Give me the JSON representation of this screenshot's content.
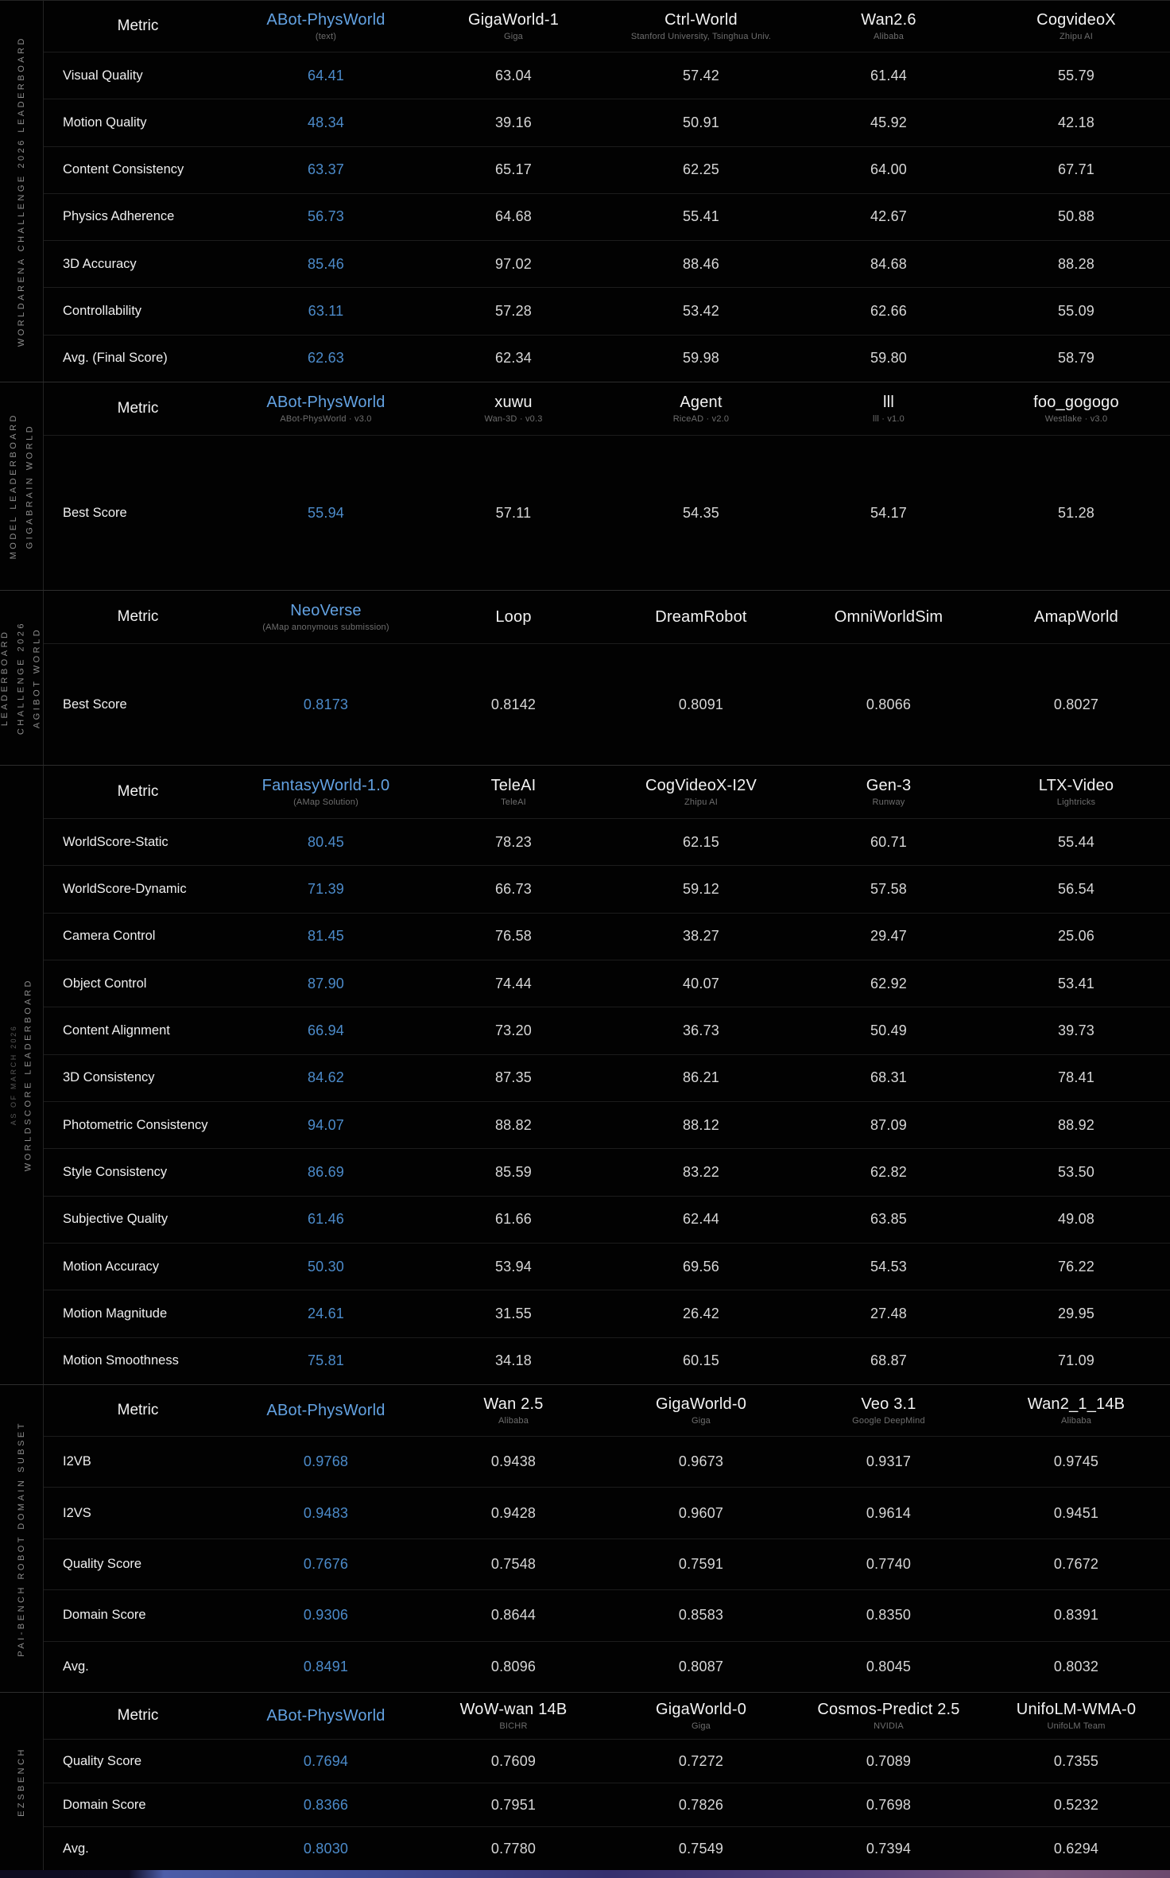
{
  "colors": {
    "accent_header": "#63a2e2",
    "accent_value": "#4c8bca"
  },
  "footer_strip": {
    "colors": [
      "#0e0c20",
      "#0f0d24",
      "#4c5da8",
      "#3d4a94",
      "#35306e",
      "#52407c",
      "#7a5880",
      "#6b4a6e"
    ]
  },
  "tables": [
    {
      "id": "worldarena-challenge-2026",
      "sidebar_lines": [
        {
          "text": "WORLDARENA CHALLENGE 2026 LEADERBOARD"
        }
      ],
      "metric_label": "Metric",
      "columns": [
        {
          "name": "ABot-PhysWorld",
          "sub": "(text)",
          "highlight": true
        },
        {
          "name": "GigaWorld-1",
          "sub": "Giga"
        },
        {
          "name": "Ctrl-World",
          "sub": "Stanford University, Tsinghua Univ."
        },
        {
          "name": "Wan2.6",
          "sub": "Alibaba"
        },
        {
          "name": "CogvideoX",
          "sub": "Zhipu AI"
        }
      ],
      "rows": [
        {
          "label": "Visual Quality",
          "values": [
            "64.41",
            "63.04",
            "57.42",
            "61.44",
            "55.79"
          ]
        },
        {
          "label": "Motion Quality",
          "values": [
            "48.34",
            "39.16",
            "50.91",
            "45.92",
            "42.18"
          ]
        },
        {
          "label": "Content Consistency",
          "values": [
            "63.37",
            "65.17",
            "62.25",
            "64.00",
            "67.71"
          ]
        },
        {
          "label": "Physics Adherence",
          "values": [
            "56.73",
            "64.68",
            "55.41",
            "42.67",
            "50.88"
          ]
        },
        {
          "label": "3D Accuracy",
          "values": [
            "85.46",
            "97.02",
            "88.46",
            "84.68",
            "88.28"
          ]
        },
        {
          "label": "Controllability",
          "values": [
            "63.11",
            "57.28",
            "53.42",
            "62.66",
            "55.09"
          ]
        },
        {
          "label": "Avg. (Final Score)",
          "values": [
            "62.63",
            "62.34",
            "59.98",
            "59.80",
            "58.79"
          ]
        }
      ]
    },
    {
      "id": "gigabrain-world",
      "sidebar_lines": [
        {
          "text": "MODEL LEADERBOARD"
        },
        {
          "text": "GIGABRAIN WORLD"
        }
      ],
      "metric_label": "Metric",
      "columns": [
        {
          "name": "ABot-PhysWorld",
          "sub": "ABot-PhysWorld · v3.0",
          "highlight": true
        },
        {
          "name": "xuwu",
          "sub": "Wan-3D · v0.3"
        },
        {
          "name": "Agent",
          "sub": "RiceAD · v2.0"
        },
        {
          "name": "lll",
          "sub": "lll · v1.0"
        },
        {
          "name": "foo_gogogo",
          "sub": "Westlake · v3.0"
        }
      ],
      "rows": [
        {
          "label": "Best Score",
          "values": [
            "55.94",
            "57.11",
            "54.35",
            "54.17",
            "51.28"
          ]
        }
      ]
    },
    {
      "id": "agibot-world",
      "sidebar_lines": [
        {
          "text": "LEADERBOARD"
        },
        {
          "text": "CHALLENGE 2026"
        },
        {
          "text": "AGIBOT WORLD"
        }
      ],
      "metric_label": "Metric",
      "columns": [
        {
          "name": "NeoVerse",
          "sub": "(AMap anonymous submission)",
          "highlight": true
        },
        {
          "name": "Loop"
        },
        {
          "name": "DreamRobot"
        },
        {
          "name": "OmniWorldSim"
        },
        {
          "name": "AmapWorld"
        }
      ],
      "rows": [
        {
          "label": "Best Score",
          "values": [
            "0.8173",
            "0.8142",
            "0.8091",
            "0.8066",
            "0.8027"
          ]
        }
      ]
    },
    {
      "id": "worldscore",
      "sidebar_lines": [
        {
          "text": "AS OF MARCH 2026",
          "small": true
        },
        {
          "text": "WORLDSCORE LEADERBOARD"
        }
      ],
      "metric_label": "Metric",
      "columns": [
        {
          "name": "FantasyWorld-1.0",
          "sub": "(AMap Solution)",
          "highlight": true
        },
        {
          "name": "TeleAI",
          "sub": "TeleAI"
        },
        {
          "name": "CogVideoX-I2V",
          "sub": "Zhipu AI"
        },
        {
          "name": "Gen-3",
          "sub": "Runway"
        },
        {
          "name": "LTX-Video",
          "sub": "Lightricks"
        }
      ],
      "rows": [
        {
          "label": "WorldScore-Static",
          "values": [
            "80.45",
            "78.23",
            "62.15",
            "60.71",
            "55.44"
          ]
        },
        {
          "label": "WorldScore-Dynamic",
          "values": [
            "71.39",
            "66.73",
            "59.12",
            "57.58",
            "56.54"
          ]
        },
        {
          "label": "Camera Control",
          "values": [
            "81.45",
            "76.58",
            "38.27",
            "29.47",
            "25.06"
          ]
        },
        {
          "label": "Object Control",
          "values": [
            "87.90",
            "74.44",
            "40.07",
            "62.92",
            "53.41"
          ]
        },
        {
          "label": "Content Alignment",
          "values": [
            "66.94",
            "73.20",
            "36.73",
            "50.49",
            "39.73"
          ]
        },
        {
          "label": "3D Consistency",
          "values": [
            "84.62",
            "87.35",
            "86.21",
            "68.31",
            "78.41"
          ]
        },
        {
          "label": "Photometric Consistency",
          "values": [
            "94.07",
            "88.82",
            "88.12",
            "87.09",
            "88.92"
          ]
        },
        {
          "label": "Style Consistency",
          "values": [
            "86.69",
            "85.59",
            "83.22",
            "62.82",
            "53.50"
          ]
        },
        {
          "label": "Subjective Quality",
          "values": [
            "61.46",
            "61.66",
            "62.44",
            "63.85",
            "49.08"
          ]
        },
        {
          "label": "Motion Accuracy",
          "values": [
            "50.30",
            "53.94",
            "69.56",
            "54.53",
            "76.22"
          ]
        },
        {
          "label": "Motion Magnitude",
          "values": [
            "24.61",
            "31.55",
            "26.42",
            "27.48",
            "29.95"
          ]
        },
        {
          "label": "Motion Smoothness",
          "values": [
            "75.81",
            "34.18",
            "60.15",
            "68.87",
            "71.09"
          ]
        }
      ]
    },
    {
      "id": "pai-bench-robot",
      "sidebar_lines": [
        {
          "text": "PAI-BENCH ROBOT DOMAIN SUBSET"
        }
      ],
      "metric_label": "Metric",
      "columns": [
        {
          "name": "ABot-PhysWorld",
          "highlight": true
        },
        {
          "name": "Wan 2.5",
          "sub": "Alibaba"
        },
        {
          "name": "GigaWorld-0",
          "sub": "Giga"
        },
        {
          "name": "Veo 3.1",
          "sub": "Google DeepMind"
        },
        {
          "name": "Wan2_1_14B",
          "sub": "Alibaba"
        }
      ],
      "rows": [
        {
          "label": "I2VB",
          "values": [
            "0.9768",
            "0.9438",
            "0.9673",
            "0.9317",
            "0.9745"
          ]
        },
        {
          "label": "I2VS",
          "values": [
            "0.9483",
            "0.9428",
            "0.9607",
            "0.9614",
            "0.9451"
          ]
        },
        {
          "label": "Quality Score",
          "values": [
            "0.7676",
            "0.7548",
            "0.7591",
            "0.7740",
            "0.7672"
          ]
        },
        {
          "label": "Domain Score",
          "values": [
            "0.9306",
            "0.8644",
            "0.8583",
            "0.8350",
            "0.8391"
          ]
        },
        {
          "label": "Avg.",
          "values": [
            "0.8491",
            "0.8096",
            "0.8087",
            "0.8045",
            "0.8032"
          ]
        }
      ]
    },
    {
      "id": "ezsbench",
      "sidebar_lines": [
        {
          "text": "EZSBENCH"
        }
      ],
      "metric_label": "Metric",
      "columns": [
        {
          "name": "ABot-PhysWorld",
          "highlight": true
        },
        {
          "name": "WoW-wan 14B",
          "sub": "BICHR"
        },
        {
          "name": "GigaWorld-0",
          "sub": "Giga"
        },
        {
          "name": "Cosmos-Predict 2.5",
          "sub": "NVIDIA"
        },
        {
          "name": "UnifoLM-WMA-0",
          "sub": "UnifoLM Team"
        }
      ],
      "rows": [
        {
          "label": "Quality Score",
          "values": [
            "0.7694",
            "0.7609",
            "0.7272",
            "0.7089",
            "0.7355"
          ]
        },
        {
          "label": "Domain Score",
          "values": [
            "0.8366",
            "0.7951",
            "0.7826",
            "0.7698",
            "0.5232"
          ]
        },
        {
          "label": "Avg.",
          "values": [
            "0.8030",
            "0.7780",
            "0.7549",
            "0.7394",
            "0.6294"
          ]
        }
      ]
    }
  ]
}
